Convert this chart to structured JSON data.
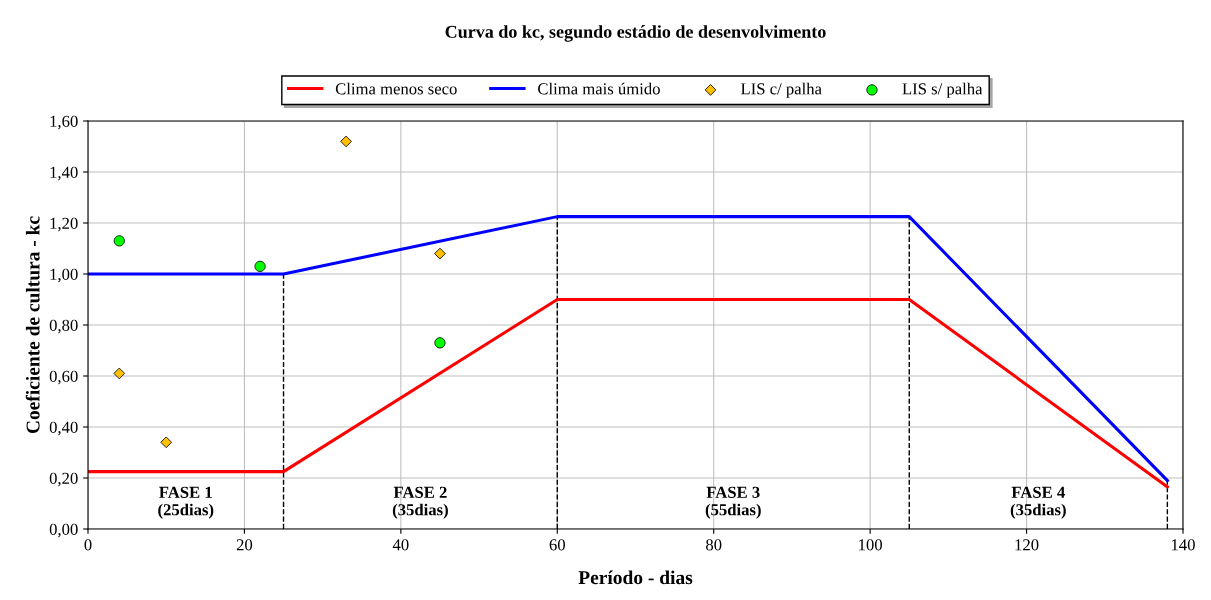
{
  "chart_data": {
    "type": "line",
    "title": "Curva do kc, segundo estádio de desenvolvimento",
    "xlabel": "Período - dias",
    "ylabel": "Coeficiente de cultura - kc",
    "series": [
      {
        "name": "Clima menos seco",
        "color": "#ff0000",
        "x": [
          0,
          25,
          60,
          105,
          138
        ],
        "values": [
          0.225,
          0.225,
          0.9,
          0.9,
          0.165
        ]
      },
      {
        "name": "Clima mais úmido",
        "color": "#0000ff",
        "x": [
          0,
          25,
          60,
          105,
          138
        ],
        "values": [
          1.0,
          1.0,
          1.225,
          1.225,
          0.19
        ]
      },
      {
        "name": "LIS c/ palha",
        "type": "scatter",
        "marker": "diamond",
        "color": "#ffc000",
        "x": [
          4,
          10,
          33,
          45
        ],
        "values": [
          0.61,
          0.34,
          1.52,
          1.08
        ]
      },
      {
        "name": "LIS s/ palha",
        "type": "scatter",
        "marker": "circle",
        "color": "#00ff00",
        "x": [
          4,
          22,
          45
        ],
        "values": [
          1.13,
          1.03,
          0.73
        ]
      }
    ],
    "xlim": [
      0,
      140
    ],
    "xticks": [
      0,
      20,
      40,
      60,
      80,
      100,
      120,
      140
    ],
    "ylim": [
      0,
      1.6
    ],
    "yticks": [
      {
        "value": 0,
        "label": "0,00"
      },
      {
        "value": 0.2,
        "label": "0,20"
      },
      {
        "value": 0.4,
        "label": "0,40"
      },
      {
        "value": 0.6,
        "label": "0,60"
      },
      {
        "value": 0.8,
        "label": "0,80"
      },
      {
        "value": 1.0,
        "label": "1,00"
      },
      {
        "value": 1.2,
        "label": "1,20"
      },
      {
        "value": 1.4,
        "label": "1,40"
      },
      {
        "value": 1.6,
        "label": "1,60"
      }
    ],
    "ref_lines": [
      {
        "axis": "x",
        "value": 25,
        "color": "#000000",
        "line_style": "dashed"
      },
      {
        "axis": "x",
        "value": 60,
        "color": "#000000",
        "line_style": "dashed"
      },
      {
        "axis": "x",
        "value": 105,
        "color": "#000000",
        "line_style": "dashed"
      },
      {
        "axis": "x",
        "value": 138,
        "color": "#000000",
        "line_style": "dashed"
      }
    ],
    "annotations": [
      "FASE 1\n(25dias)",
      "FASE 2\n(35dias)",
      "FASE 3\n(55dias)",
      "FASE 4\n(35dias)"
    ],
    "grid": true,
    "legend": "top",
    "line_style": "solid"
  }
}
